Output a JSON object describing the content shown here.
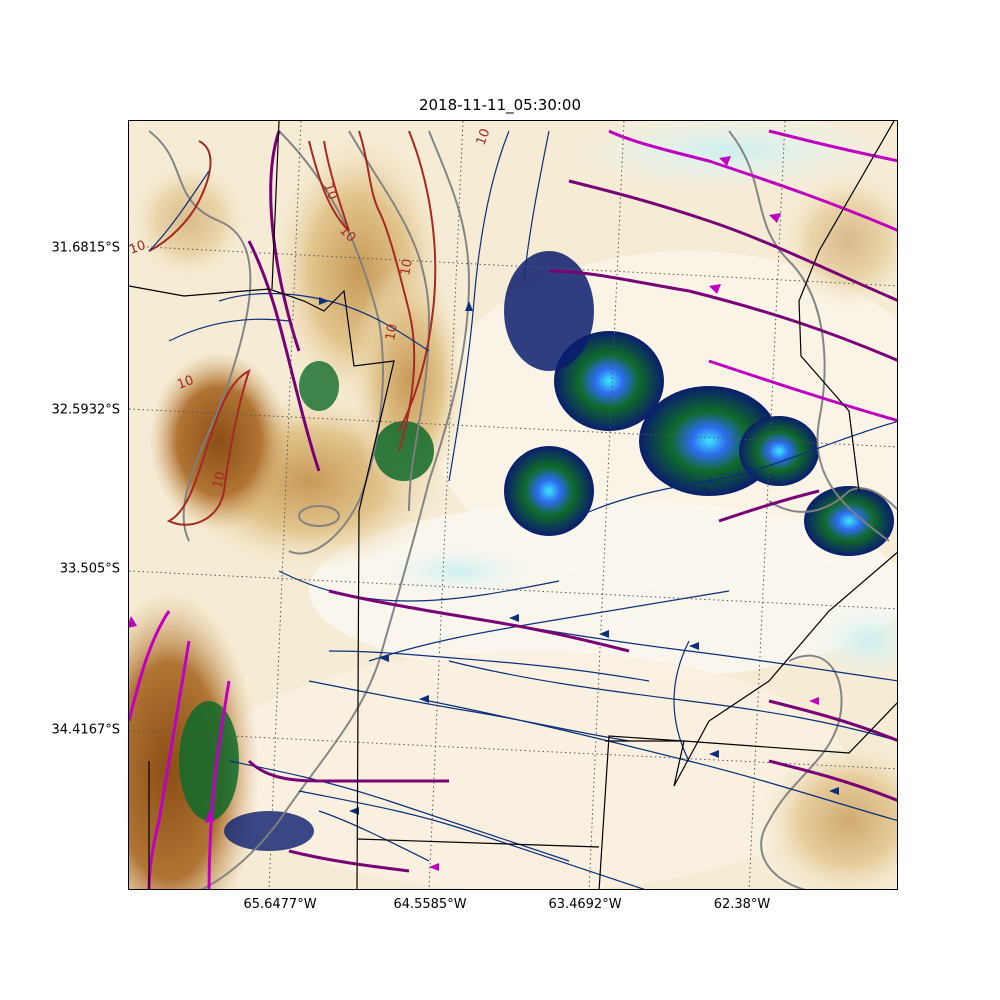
{
  "title": "2018-11-11_05:30:00",
  "latitude_labels": [
    "31.6815°S",
    "32.5932°S",
    "33.505°S",
    "34.4167°S"
  ],
  "longitude_labels": [
    "65.6477°W",
    "64.5585°W",
    "63.4692°W",
    "62.38°W"
  ],
  "contour_label": "10",
  "colors": {
    "terrain_light": "#f7efdc",
    "terrain_mid": "#dcb77a",
    "terrain_dark": "#9a5a1c",
    "precip_dark": "#0a1d6e",
    "precip_green": "#0f6a2a",
    "precip_blue": "#2d6cf0",
    "precip_cyan": "#3ee6ff",
    "streamline_blue": "#0b2f7a",
    "streamline_magenta": "#c000c0",
    "streamline_purple": "#7a0077",
    "contour_gray": "#808080",
    "contour_brown": "#a52a22",
    "border": "#000000"
  }
}
